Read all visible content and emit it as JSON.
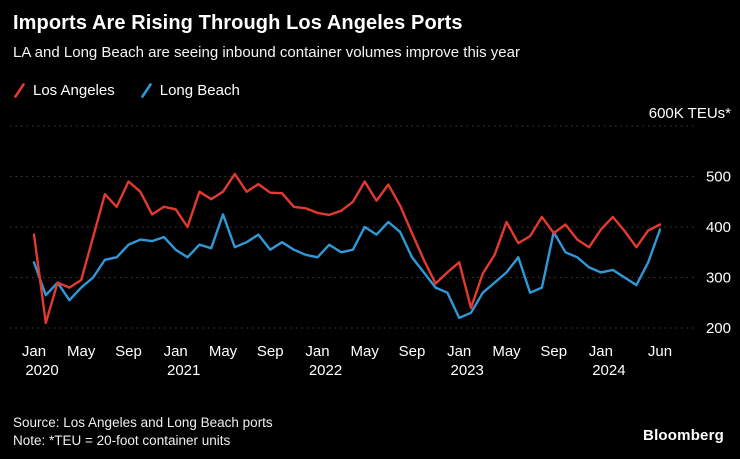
{
  "header": {
    "title": "Imports Are Rising Through Los Angeles Ports",
    "subtitle": "LA and Long Beach are seeing inbound container volumes improve this year"
  },
  "legend": {
    "items": [
      {
        "label": "Los Angeles",
        "color": "#e23a2e"
      },
      {
        "label": "Long Beach",
        "color": "#2f99d7"
      }
    ]
  },
  "chart_data": {
    "type": "line",
    "title": "Imports Are Rising Through Los Angeles Ports",
    "subtitle": "LA and Long Beach are seeing inbound container volumes improve this year",
    "unit_label": "600K TEUs*",
    "ylim": [
      200,
      600
    ],
    "grid": "horizontal-dotted",
    "legend_position": "top-left",
    "x": [
      "Jan 2020",
      "Feb 2020",
      "Mar 2020",
      "Apr 2020",
      "May 2020",
      "Jun 2020",
      "Jul 2020",
      "Aug 2020",
      "Sep 2020",
      "Oct 2020",
      "Nov 2020",
      "Dec 2020",
      "Jan 2021",
      "Feb 2021",
      "Mar 2021",
      "Apr 2021",
      "May 2021",
      "Jun 2021",
      "Jul 2021",
      "Aug 2021",
      "Sep 2021",
      "Oct 2021",
      "Nov 2021",
      "Dec 2021",
      "Jan 2022",
      "Feb 2022",
      "Mar 2022",
      "Apr 2022",
      "May 2022",
      "Jun 2022",
      "Jul 2022",
      "Aug 2022",
      "Sep 2022",
      "Oct 2022",
      "Nov 2022",
      "Dec 2022",
      "Jan 2023",
      "Feb 2023",
      "Mar 2023",
      "Apr 2023",
      "May 2023",
      "Jun 2023",
      "Jul 2023",
      "Aug 2023",
      "Sep 2023",
      "Oct 2023",
      "Nov 2023",
      "Dec 2023",
      "Jan 2024",
      "Feb 2024",
      "Mar 2024",
      "Apr 2024",
      "May 2024",
      "Jun 2024"
    ],
    "series": [
      {
        "name": "Los Angeles",
        "color": "#e23a2e",
        "values": [
          385,
          210,
          290,
          280,
          295,
          380,
          465,
          440,
          490,
          470,
          425,
          440,
          435,
          400,
          470,
          455,
          470,
          505,
          470,
          485,
          468,
          467,
          440,
          437,
          428,
          424,
          432,
          450,
          490,
          452,
          484,
          442,
          388,
          335,
          288,
          310,
          330,
          240,
          308,
          345,
          410,
          368,
          382,
          420,
          388,
          405,
          375,
          360,
          395,
          420,
          392,
          360,
          393,
          405
        ]
      },
      {
        "name": "Long Beach",
        "color": "#2f99d7",
        "values": [
          330,
          265,
          290,
          255,
          280,
          300,
          335,
          340,
          365,
          375,
          372,
          380,
          355,
          340,
          365,
          358,
          425,
          360,
          370,
          385,
          355,
          370,
          355,
          345,
          340,
          365,
          350,
          355,
          400,
          385,
          410,
          390,
          340,
          310,
          280,
          270,
          220,
          230,
          270,
          290,
          310,
          340,
          270,
          280,
          390,
          350,
          340,
          320,
          310,
          315,
          300,
          285,
          330,
          395
        ]
      }
    ],
    "y_ticks": [
      {
        "value": 600,
        "label": "600K TEUs*"
      },
      {
        "value": 500,
        "label": "500"
      },
      {
        "value": 400,
        "label": "400"
      },
      {
        "value": 300,
        "label": "300"
      },
      {
        "value": 200,
        "label": "200"
      }
    ],
    "x_ticks": [
      {
        "index": 0,
        "month": "Jan",
        "year": "2020"
      },
      {
        "index": 4,
        "month": "May"
      },
      {
        "index": 8,
        "month": "Sep"
      },
      {
        "index": 12,
        "month": "Jan",
        "year": "2021"
      },
      {
        "index": 16,
        "month": "May"
      },
      {
        "index": 20,
        "month": "Sep"
      },
      {
        "index": 24,
        "month": "Jan",
        "year": "2022"
      },
      {
        "index": 28,
        "month": "May"
      },
      {
        "index": 32,
        "month": "Sep"
      },
      {
        "index": 36,
        "month": "Jan",
        "year": "2023"
      },
      {
        "index": 40,
        "month": "May"
      },
      {
        "index": 44,
        "month": "Sep"
      },
      {
        "index": 48,
        "month": "Jan",
        "year": "2024"
      },
      {
        "index": 53,
        "month": "Jun"
      }
    ]
  },
  "footer": {
    "source": "Source: Los Angeles and Long Beach ports",
    "note": "Note: *TEU = 20-foot container units",
    "brand": "Bloomberg"
  },
  "colors": {
    "background": "#000000",
    "grid": "#3f3f3f",
    "text": "#ffffff",
    "los_angeles": "#e23a2e",
    "long_beach": "#2f99d7"
  }
}
